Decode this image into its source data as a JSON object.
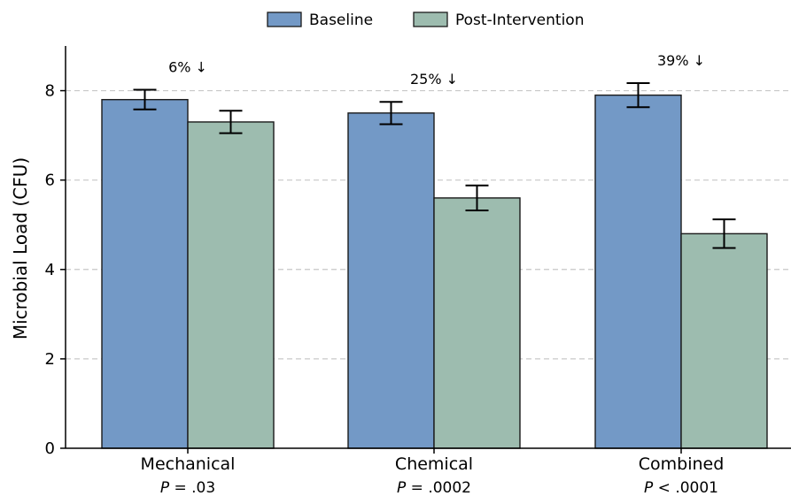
{
  "chart_data": {
    "type": "bar",
    "categories": [
      "Mechanical",
      "Chemical",
      "Combined"
    ],
    "p_values": [
      {
        "prefix": "P",
        "rest": " = .03"
      },
      {
        "prefix": "P",
        "rest": " = .0002"
      },
      {
        "prefix": "P",
        "rest": " < .0001"
      }
    ],
    "annotations": [
      "6% ↓",
      "25% ↓",
      "39% ↓"
    ],
    "series": [
      {
        "name": "Baseline",
        "values": [
          7.8,
          7.5,
          7.9
        ],
        "errors": [
          0.22,
          0.25,
          0.27
        ],
        "color": "#7399c6"
      },
      {
        "name": "Post-Intervention",
        "values": [
          7.3,
          5.6,
          4.8
        ],
        "errors": [
          0.25,
          0.28,
          0.32
        ],
        "color": "#9dbcaf"
      }
    ],
    "ylabel": "Microbial Load (CFU)",
    "ylim": [
      0,
      9
    ],
    "yticks": [
      0,
      2,
      4,
      6,
      8
    ],
    "grid": "horizontal dashed",
    "legend_position": "top-center"
  }
}
